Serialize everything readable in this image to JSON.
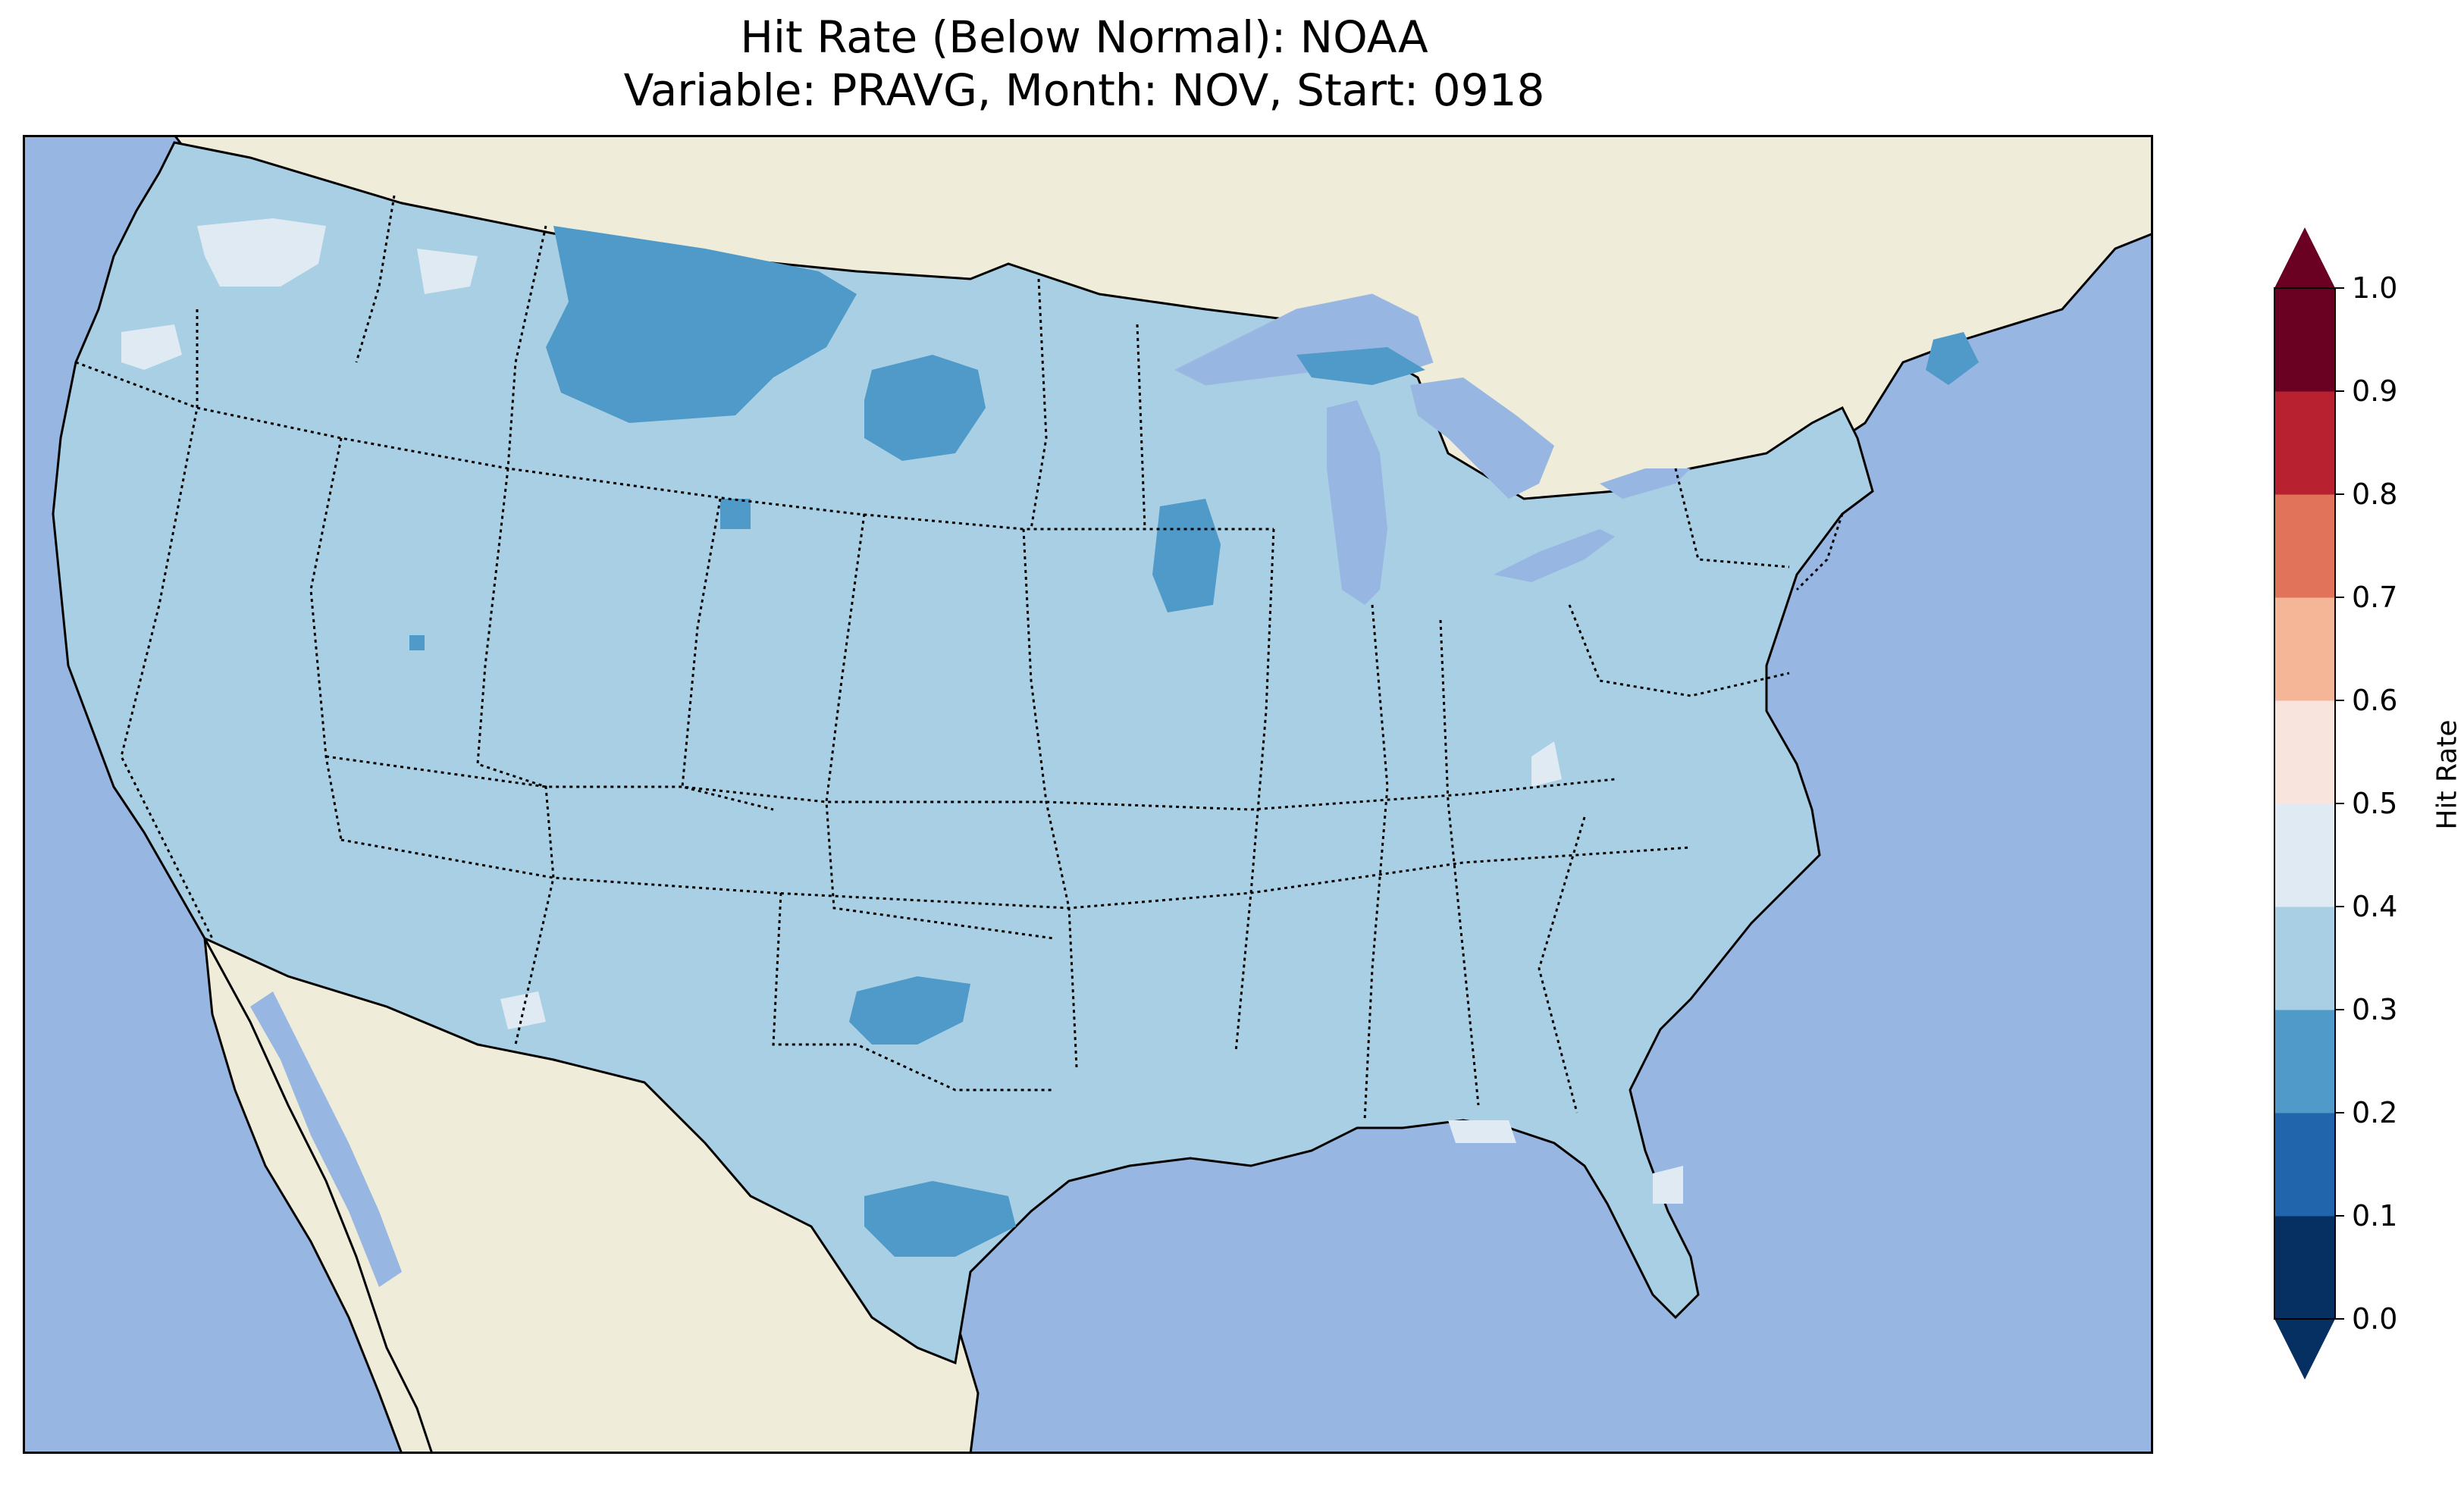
{
  "title": {
    "line1": "Hit Rate (Below Normal): NOAA",
    "line2": "Variable: PRAVG, Month: NOV, Start: 0918"
  },
  "colorbar": {
    "label": "Hit Rate",
    "ticks": [
      "0.0",
      "0.1",
      "0.2",
      "0.3",
      "0.4",
      "0.5",
      "0.6",
      "0.7",
      "0.8",
      "0.9",
      "1.0"
    ],
    "colors": [
      "#053061",
      "#2166ac",
      "#4393c3",
      "#a6cee3",
      "#d1e5f0",
      "#f7f7f7",
      "#fddbc7",
      "#f4a582",
      "#d6604d",
      "#b2182b",
      "#67001f"
    ],
    "bins": [
      {
        "range": [
          0.0,
          0.1
        ],
        "color": "#053061"
      },
      {
        "range": [
          0.1,
          0.2
        ],
        "color": "#2166ac"
      },
      {
        "range": [
          0.2,
          0.3
        ],
        "color": "#4f9ac9"
      },
      {
        "range": [
          0.3,
          0.4
        ],
        "color": "#a8cfe3"
      },
      {
        "range": [
          0.4,
          0.5
        ],
        "color": "#dfeaf3"
      },
      {
        "range": [
          0.5,
          0.6
        ],
        "color": "#f8e4dc"
      },
      {
        "range": [
          0.6,
          0.7
        ],
        "color": "#f5b597"
      },
      {
        "range": [
          0.7,
          0.8
        ],
        "color": "#e0735a"
      },
      {
        "range": [
          0.8,
          0.9
        ],
        "color": "#b8212f"
      },
      {
        "range": [
          0.9,
          1.0
        ],
        "color": "#6a0022"
      }
    ],
    "extend": "both"
  },
  "map": {
    "ocean_color": "#97b6e1",
    "land_color": "#efedda",
    "dominant_bin": "0.3-0.4",
    "regions": [
      {
        "name": "montana-low",
        "bin": "0.2-0.3"
      },
      {
        "name": "south-dakota-low",
        "bin": "0.2-0.3"
      },
      {
        "name": "iowa-low",
        "bin": "0.2-0.3"
      },
      {
        "name": "texas-panhandle-low",
        "bin": "0.2-0.3"
      },
      {
        "name": "south-texas-low",
        "bin": "0.2-0.3"
      },
      {
        "name": "maine-low",
        "bin": "0.2-0.3"
      },
      {
        "name": "upper-michigan-low",
        "bin": "0.2-0.3"
      },
      {
        "name": "washington-high",
        "bin": "0.4-0.5"
      },
      {
        "name": "florida-high",
        "bin": "0.4-0.5"
      }
    ]
  }
}
